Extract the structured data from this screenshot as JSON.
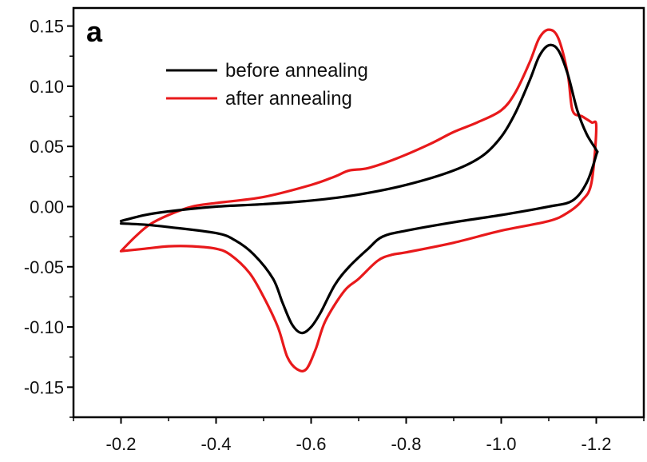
{
  "chart_data": {
    "type": "line",
    "panel_label": "a",
    "title": "",
    "xlabel": "",
    "ylabel": "",
    "x_reversed": true,
    "xlim": [
      -0.1,
      -1.3
    ],
    "ylim": [
      -0.175,
      0.165
    ],
    "x_ticks": [
      -0.2,
      -0.4,
      -0.6,
      -0.8,
      -1.0,
      -1.2
    ],
    "x_tick_labels": [
      "-0.2",
      "-0.4",
      "-0.6",
      "-0.8",
      "-1.0",
      "-1.2"
    ],
    "y_ticks": [
      0.15,
      0.1,
      0.05,
      0.0,
      -0.05,
      -0.1,
      -0.15
    ],
    "y_tick_labels": [
      "0.15",
      "0.10",
      "0.05",
      "0.00",
      "-0.05",
      "-0.10",
      "-0.15"
    ],
    "grid": false,
    "legend_position": "top-left",
    "series": [
      {
        "name": "before annealing",
        "color": "#000000",
        "points": [
          [
            -0.2,
            -0.012
          ],
          [
            -0.25,
            -0.007
          ],
          [
            -0.3,
            -0.004
          ],
          [
            -0.4,
            0.0
          ],
          [
            -0.5,
            0.002
          ],
          [
            -0.6,
            0.005
          ],
          [
            -0.7,
            0.01
          ],
          [
            -0.8,
            0.018
          ],
          [
            -0.9,
            0.03
          ],
          [
            -0.96,
            0.042
          ],
          [
            -1.0,
            0.058
          ],
          [
            -1.03,
            0.078
          ],
          [
            -1.06,
            0.105
          ],
          [
            -1.08,
            0.125
          ],
          [
            -1.1,
            0.134
          ],
          [
            -1.12,
            0.13
          ],
          [
            -1.14,
            0.11
          ],
          [
            -1.16,
            0.08
          ],
          [
            -1.18,
            0.06
          ],
          [
            -1.2,
            0.047
          ],
          [
            -1.2,
            0.043
          ],
          [
            -1.18,
            0.02
          ],
          [
            -1.15,
            0.005
          ],
          [
            -1.1,
            0.0
          ],
          [
            -1.0,
            -0.007
          ],
          [
            -0.9,
            -0.013
          ],
          [
            -0.8,
            -0.02
          ],
          [
            -0.75,
            -0.025
          ],
          [
            -0.72,
            -0.035
          ],
          [
            -0.68,
            -0.05
          ],
          [
            -0.65,
            -0.065
          ],
          [
            -0.62,
            -0.088
          ],
          [
            -0.6,
            -0.1
          ],
          [
            -0.58,
            -0.105
          ],
          [
            -0.56,
            -0.098
          ],
          [
            -0.54,
            -0.08
          ],
          [
            -0.52,
            -0.06
          ],
          [
            -0.48,
            -0.04
          ],
          [
            -0.44,
            -0.028
          ],
          [
            -0.4,
            -0.022
          ],
          [
            -0.3,
            -0.017
          ],
          [
            -0.25,
            -0.015
          ],
          [
            -0.2,
            -0.014
          ]
        ]
      },
      {
        "name": "after annealing",
        "color": "#e8191b",
        "points": [
          [
            -0.2,
            -0.037
          ],
          [
            -0.23,
            -0.025
          ],
          [
            -0.26,
            -0.015
          ],
          [
            -0.3,
            -0.007
          ],
          [
            -0.35,
            0.0
          ],
          [
            -0.4,
            0.003
          ],
          [
            -0.5,
            0.008
          ],
          [
            -0.6,
            0.018
          ],
          [
            -0.65,
            0.025
          ],
          [
            -0.68,
            0.03
          ],
          [
            -0.72,
            0.032
          ],
          [
            -0.78,
            0.04
          ],
          [
            -0.85,
            0.052
          ],
          [
            -0.9,
            0.062
          ],
          [
            -0.95,
            0.07
          ],
          [
            -1.0,
            0.08
          ],
          [
            -1.03,
            0.095
          ],
          [
            -1.06,
            0.12
          ],
          [
            -1.08,
            0.14
          ],
          [
            -1.1,
            0.147
          ],
          [
            -1.12,
            0.14
          ],
          [
            -1.14,
            0.11
          ],
          [
            -1.15,
            0.08
          ],
          [
            -1.17,
            0.075
          ],
          [
            -1.19,
            0.07
          ],
          [
            -1.2,
            0.066
          ],
          [
            -1.19,
            0.02
          ],
          [
            -1.17,
            0.005
          ],
          [
            -1.14,
            -0.005
          ],
          [
            -1.1,
            -0.012
          ],
          [
            -1.0,
            -0.02
          ],
          [
            -0.9,
            -0.03
          ],
          [
            -0.8,
            -0.038
          ],
          [
            -0.77,
            -0.04
          ],
          [
            -0.74,
            -0.045
          ],
          [
            -0.7,
            -0.06
          ],
          [
            -0.67,
            -0.07
          ],
          [
            -0.63,
            -0.095
          ],
          [
            -0.61,
            -0.118
          ],
          [
            -0.59,
            -0.135
          ],
          [
            -0.57,
            -0.135
          ],
          [
            -0.55,
            -0.125
          ],
          [
            -0.53,
            -0.1
          ],
          [
            -0.5,
            -0.075
          ],
          [
            -0.47,
            -0.055
          ],
          [
            -0.43,
            -0.04
          ],
          [
            -0.4,
            -0.035
          ],
          [
            -0.35,
            -0.033
          ],
          [
            -0.3,
            -0.033
          ],
          [
            -0.25,
            -0.035
          ],
          [
            -0.2,
            -0.037
          ]
        ]
      }
    ]
  }
}
